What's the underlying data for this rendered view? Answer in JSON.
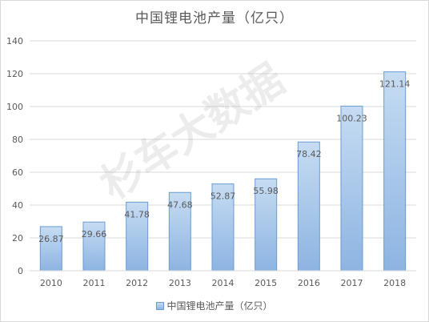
{
  "chart_data": {
    "type": "bar",
    "title": "中国锂电池产量（亿只）",
    "xlabel": "",
    "ylabel": "",
    "categories": [
      "2010",
      "2011",
      "2012",
      "2013",
      "2014",
      "2015",
      "2016",
      "2017",
      "2018"
    ],
    "series": [
      {
        "name": "中国锂电池产量（亿只）",
        "values": [
          26.87,
          29.66,
          41.78,
          47.68,
          52.87,
          55.98,
          78.42,
          100.23,
          121.14
        ],
        "labels": [
          "26.87",
          "29.66",
          "41.78",
          "47.68",
          "52.87",
          "55.98",
          "78.42",
          "100.23",
          "121.14"
        ]
      }
    ],
    "ylim": [
      0,
      140
    ],
    "yticks": [
      "0",
      "20",
      "40",
      "60",
      "80",
      "100",
      "120",
      "140"
    ],
    "grid": true,
    "legend": "bottom",
    "colors": {
      "bar_top": "#c6dcf2",
      "bar_bottom": "#8db4e2",
      "bar_border": "#6a9bd3",
      "grid": "#d9d9d9",
      "text": "#595959"
    }
  },
  "watermark": "杉车大数据"
}
